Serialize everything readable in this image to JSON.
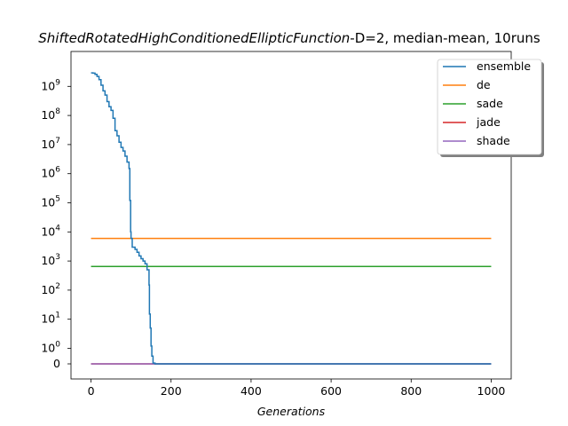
{
  "chart_data": {
    "type": "line",
    "title_italic": "ShiftedRotatedHighConditionedEllipticFunction",
    "title_rest": "-D=2, median-mean, 10runs",
    "xlabel": "Generations",
    "ylabel": "",
    "xlim": [
      -50,
      1050
    ],
    "ylim_note": "symlog",
    "x_ticks": [
      0,
      200,
      400,
      600,
      800,
      1000
    ],
    "y_tick_labels": [
      "0",
      "10^0",
      "10^1",
      "10^2",
      "10^3",
      "10^4",
      "10^5",
      "10^6",
      "10^7",
      "10^8",
      "10^9"
    ],
    "grid": false,
    "legend_position": "top-right",
    "series": [
      {
        "name": "ensemble",
        "color": "#1f77b4",
        "points": [
          [
            0,
            2900000000.0
          ],
          [
            5,
            2850000000.0
          ],
          [
            10,
            2600000000.0
          ],
          [
            15,
            2200000000.0
          ],
          [
            20,
            1700000000.0
          ],
          [
            25,
            1100000000.0
          ],
          [
            30,
            700000000.0
          ],
          [
            35,
            500000000.0
          ],
          [
            40,
            300000000.0
          ],
          [
            45,
            200000000.0
          ],
          [
            50,
            150000000.0
          ],
          [
            55,
            80000000.0
          ],
          [
            60,
            30000000.0
          ],
          [
            65,
            20000000.0
          ],
          [
            70,
            12000000.0
          ],
          [
            75,
            8000000.0
          ],
          [
            80,
            6000000.0
          ],
          [
            85,
            4000000.0
          ],
          [
            90,
            2500000.0
          ],
          [
            95,
            1500000.0
          ],
          [
            97,
            120000.0
          ],
          [
            99,
            10000.0
          ],
          [
            100,
            6000.0
          ],
          [
            103,
            3000.0
          ],
          [
            110,
            2500.0
          ],
          [
            115,
            2000.0
          ],
          [
            120,
            1500.0
          ],
          [
            125,
            1200.0
          ],
          [
            130,
            1000.0
          ],
          [
            135,
            800
          ],
          [
            140,
            500
          ],
          [
            145,
            150
          ],
          [
            146,
            15
          ],
          [
            148,
            5
          ],
          [
            150,
            1.2
          ],
          [
            152,
            0.5
          ],
          [
            155,
            0.05
          ],
          [
            160,
            0
          ],
          [
            1000,
            0
          ]
        ]
      },
      {
        "name": "de",
        "color": "#ff7f0e",
        "points": [
          [
            0,
            6000
          ],
          [
            1000,
            6000
          ]
        ]
      },
      {
        "name": "sade",
        "color": "#2ca02c",
        "points": [
          [
            0,
            650
          ],
          [
            1000,
            650
          ]
        ]
      },
      {
        "name": "jade",
        "color": "#d62728",
        "points": [
          [
            0,
            0
          ],
          [
            1000,
            0
          ]
        ]
      },
      {
        "name": "shade",
        "color": "#9467bd",
        "points": [
          [
            0,
            0
          ],
          [
            1000,
            0
          ]
        ]
      }
    ]
  }
}
